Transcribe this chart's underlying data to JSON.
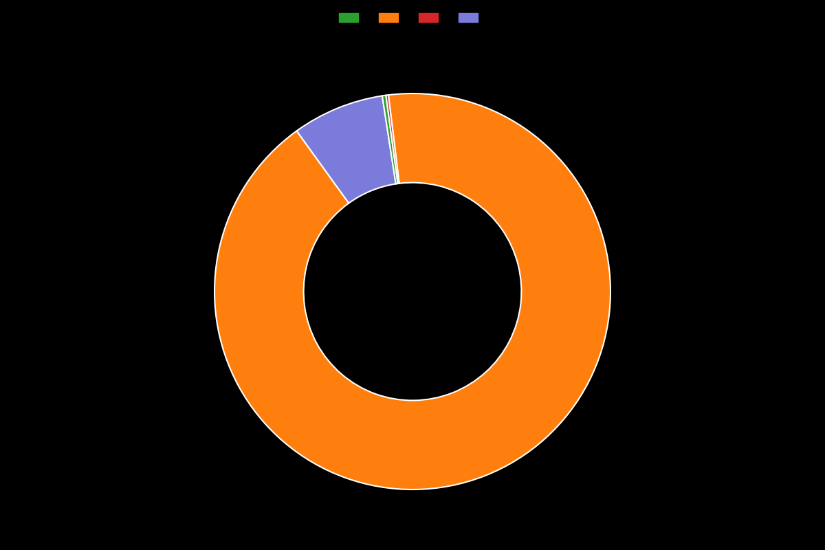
{
  "slices": [
    92.0,
    7.5,
    0.3,
    0.2
  ],
  "colors": [
    "#ff7f0e",
    "#7b7bdb",
    "#2ca02c",
    "#d62728"
  ],
  "legend_colors": [
    "#2ca02c",
    "#ff7f0e",
    "#d62728",
    "#7b7bdb"
  ],
  "background_color": "#000000",
  "wedge_linewidth": 1.5,
  "wedge_linecolor": "#ffffff",
  "donut_width": 0.45,
  "startangle": 97
}
